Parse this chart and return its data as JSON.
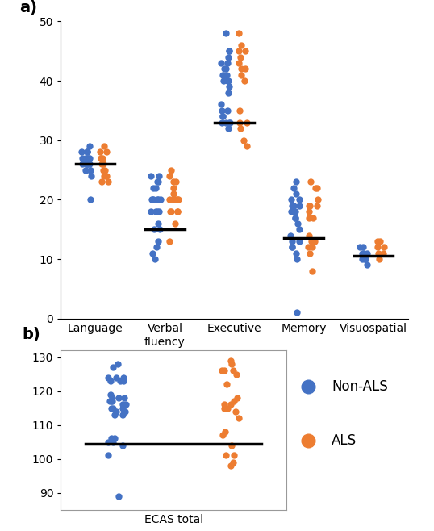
{
  "panel_a": {
    "categories": [
      "Language",
      "Verbal\nfluency",
      "Executive",
      "Memory",
      "Visuospatial"
    ],
    "medians": [
      26,
      15,
      33,
      13.5,
      10.5
    ],
    "blue_data": {
      "Language": [
        26,
        27,
        28,
        28,
        27,
        26,
        25,
        25,
        24,
        26,
        27,
        28,
        26,
        25,
        26,
        27,
        28,
        29,
        26,
        20
      ],
      "Verbal\nfluency": [
        24,
        24,
        23,
        23,
        22,
        22,
        20,
        20,
        20,
        20,
        20,
        20,
        18,
        18,
        18,
        18,
        16,
        15,
        15,
        13,
        12,
        11,
        10
      ],
      "Executive": [
        48,
        45,
        45,
        44,
        43,
        43,
        42,
        42,
        41,
        41,
        40,
        40,
        40,
        39,
        38,
        36,
        35,
        35,
        34,
        34,
        33,
        33,
        33,
        33,
        32
      ],
      "Memory": [
        23,
        22,
        21,
        20,
        20,
        19,
        19,
        19,
        18,
        18,
        18,
        17,
        17,
        16,
        15,
        14,
        13,
        13,
        12,
        12,
        11,
        10,
        1
      ],
      "Visuospatial": [
        12,
        12,
        11,
        11,
        11,
        10,
        10,
        10,
        9
      ]
    },
    "orange_data": {
      "Language": [
        29,
        28,
        28,
        27,
        27,
        27,
        26,
        26,
        25,
        25,
        24,
        24,
        23,
        23
      ],
      "Verbal\nfluency": [
        25,
        24,
        23,
        23,
        22,
        21,
        20,
        20,
        20,
        20,
        20,
        18,
        18,
        18,
        18,
        16,
        13
      ],
      "Executive": [
        48,
        46,
        45,
        45,
        44,
        43,
        42,
        42,
        41,
        40,
        35,
        33,
        33,
        32,
        30,
        29
      ],
      "Memory": [
        23,
        22,
        22,
        20,
        19,
        19,
        19,
        18,
        17,
        17,
        14,
        13,
        13,
        12,
        12,
        11,
        8
      ],
      "Visuospatial": [
        13,
        13,
        12,
        12,
        11,
        11,
        10
      ]
    },
    "ylim": [
      0,
      50
    ],
    "yticks": [
      0,
      10,
      20,
      30,
      40,
      50
    ]
  },
  "panel_b": {
    "blue_data": [
      128,
      127,
      124,
      124,
      124,
      123,
      123,
      123,
      119,
      118,
      118,
      118,
      117,
      117,
      117,
      116,
      116,
      115,
      115,
      115,
      114,
      114,
      113,
      113,
      106,
      106,
      105,
      105,
      104,
      101,
      89
    ],
    "orange_data": [
      129,
      128,
      126,
      126,
      126,
      125,
      122,
      118,
      117,
      116,
      116,
      115,
      115,
      114,
      112,
      108,
      107,
      104,
      101,
      101,
      99,
      98
    ],
    "median": 104.5,
    "ylim": [
      85,
      132
    ],
    "yticks": [
      90,
      100,
      110,
      120,
      130
    ]
  },
  "blue_color": "#4472C4",
  "orange_color": "#ED7D31",
  "marker_size": 6,
  "line_color": "black",
  "line_width": 2.5
}
